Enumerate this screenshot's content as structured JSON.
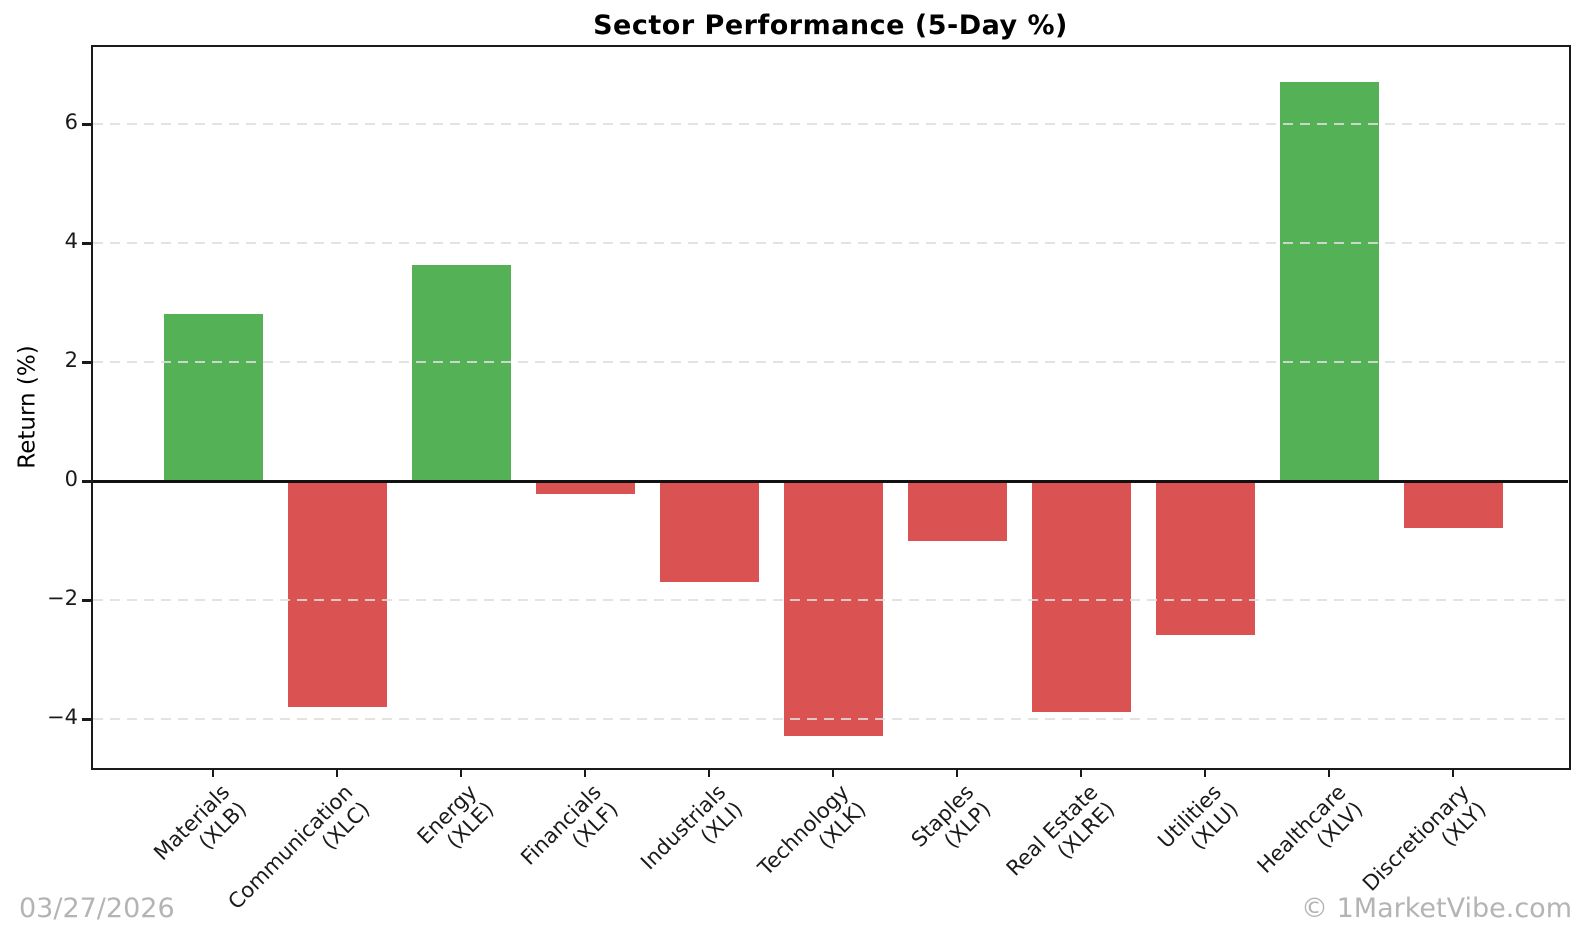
{
  "colors": {
    "positive": "#55b155",
    "negative": "#db5252",
    "grid": "#dedede",
    "axis": "#1a1a1a",
    "muted_text": "#b4b4b4",
    "title_text": "#000000"
  },
  "footer": {
    "date": "03/27/2026",
    "watermark": "© 1MarketVibe.com"
  },
  "chart_data": {
    "type": "bar",
    "title": "Sector Performance (5-Day %)",
    "xlabel": "",
    "ylabel": "Return (%)",
    "categories": [
      "Materials\n(XLB)",
      "Communication\n(XLC)",
      "Energy\n(XLE)",
      "Financials\n(XLF)",
      "Industrials\n(XLI)",
      "Technology\n(XLK)",
      "Staples\n(XLP)",
      "Real Estate\n(XLRE)",
      "Utilities\n(XLU)",
      "Healthcare\n(XLV)",
      "Discretionary\n(XLY)"
    ],
    "values": [
      2.82,
      -3.8,
      3.63,
      -0.21,
      -1.69,
      -4.28,
      -1.0,
      -3.88,
      -2.59,
      6.72,
      -0.78
    ],
    "yticks": [
      6,
      4,
      2,
      0,
      -2,
      -4
    ],
    "ylim": [
      -4.8,
      7.3
    ],
    "grid": "horizontal-dashed",
    "zero_line": true,
    "legend": "none",
    "bar_color_positive": "#55b155",
    "bar_color_negative": "#db5252"
  }
}
